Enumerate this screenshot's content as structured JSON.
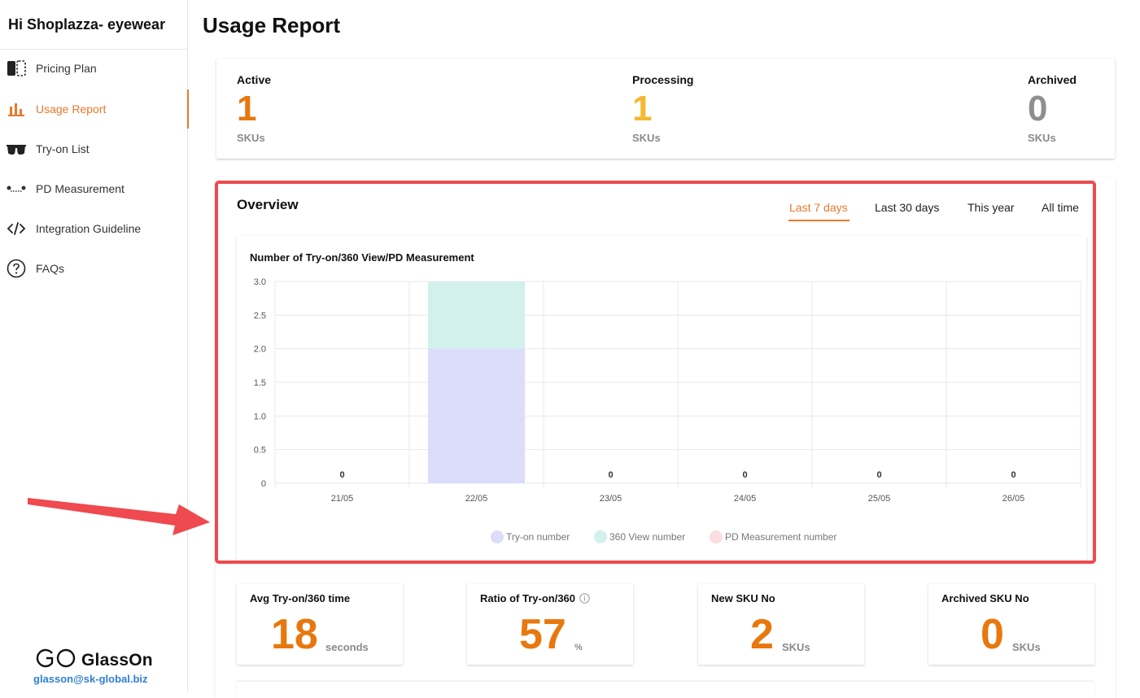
{
  "sidebar": {
    "greeting": "Hi Shoplazza- eyewear",
    "items": [
      {
        "label": "Pricing Plan",
        "icon": "pricing-plan-icon"
      },
      {
        "label": "Usage Report",
        "icon": "bar-chart-icon",
        "active": true
      },
      {
        "label": "Try-on List",
        "icon": "glasses-icon"
      },
      {
        "label": "PD Measurement",
        "icon": "pd-measurement-icon"
      },
      {
        "label": "Integration Guideline",
        "icon": "code-icon"
      },
      {
        "label": "FAQs",
        "icon": "question-circle-icon"
      }
    ],
    "brand_name": "GlassOn",
    "brand_email": "glasson@sk-global.biz"
  },
  "page_title": "Usage Report",
  "stats": [
    {
      "label": "Active",
      "value": "1",
      "unit": "SKUs",
      "color": "#e8780e"
    },
    {
      "label": "Processing",
      "value": "1",
      "unit": "SKUs",
      "color": "#f5b82e"
    },
    {
      "label": "Archived",
      "value": "0",
      "unit": "SKUs",
      "color": "#8f8f8f"
    }
  ],
  "overview": {
    "title": "Overview",
    "tabs": [
      "Last 7 days",
      "Last 30 days",
      "This year",
      "All time"
    ],
    "active_tab": "Last 7 days"
  },
  "chart_data": {
    "type": "bar",
    "stacked": true,
    "title": "Number of Try-on/360 View/PD Measurement",
    "categories": [
      "21/05",
      "22/05",
      "23/05",
      "24/05",
      "25/05",
      "26/05"
    ],
    "series": [
      {
        "name": "Try-on number",
        "values": [
          0,
          2,
          0,
          0,
          0,
          0
        ],
        "color": "#dcdcfb"
      },
      {
        "name": "360 View number",
        "values": [
          0,
          1,
          0,
          0,
          0,
          0
        ],
        "color": "#d2f0ec"
      },
      {
        "name": "PD Measurement number",
        "values": [
          0,
          0,
          0,
          0,
          0,
          0
        ],
        "color": "#fbdde2"
      }
    ],
    "totals_labels": [
      "0",
      "",
      "0",
      "0",
      "0",
      "0"
    ],
    "ylim": [
      0,
      3.0
    ],
    "yticks": [
      "0",
      "0.5",
      "1.0",
      "1.5",
      "2.0",
      "2.5",
      "3.0"
    ],
    "legend_position": "bottom",
    "grid": true
  },
  "metrics": [
    {
      "label": "Avg Try-on/360 time",
      "value": "18",
      "unit": "seconds",
      "info": false
    },
    {
      "label": "Ratio of Try-on/360",
      "value": "57",
      "unit": "%",
      "info": true
    },
    {
      "label": "New SKU No",
      "value": "2",
      "unit": "SKUs",
      "info": false
    },
    {
      "label": "Archived SKU No",
      "value": "0",
      "unit": "SKUs",
      "info": false
    }
  ],
  "colors": {
    "accent": "#e8782b",
    "highlight_border": "#ef4a4f",
    "arrow": "#ef4a4f",
    "email": "#2f7fd6"
  }
}
